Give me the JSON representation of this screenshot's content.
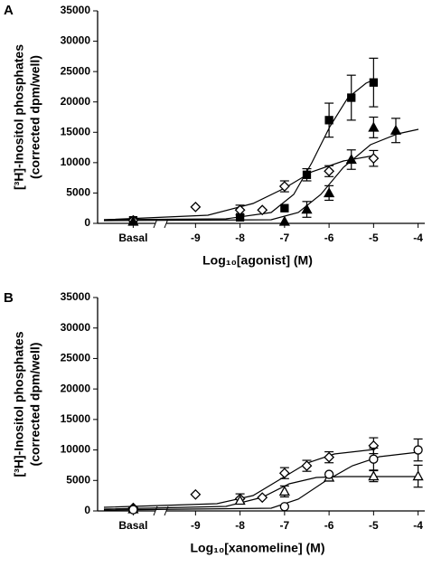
{
  "chart_data": [
    {
      "type": "scatter",
      "panel": "A",
      "ylabel": [
        "[³H]-Inositol phosphates",
        "(corrected dpm/well)"
      ],
      "xlabel": "Log₁₀[agonist] (M)",
      "xlim": [
        -11.2,
        -3.85
      ],
      "ylim": [
        0,
        35000
      ],
      "xticks": [
        {
          "value": -10.4,
          "label": "Basal"
        },
        -9,
        -8,
        -7,
        -6,
        -5,
        -4
      ],
      "yticks": [
        0,
        5000,
        10000,
        15000,
        20000,
        25000,
        30000,
        35000
      ],
      "series": [
        {
          "marker": "square",
          "filled": true,
          "color": "#000000",
          "x": [
            -10.4,
            -8,
            -7,
            -6.5,
            -6,
            -5.5,
            -5
          ],
          "values": [
            500,
            1000,
            2500,
            8000,
            17000,
            20700,
            23200
          ],
          "errors": [
            null,
            null,
            null,
            1000,
            2800,
            3700,
            4000
          ]
        },
        {
          "marker": "diamond",
          "filled": false,
          "color": "#000000",
          "x": [
            -10.4,
            -9,
            -8,
            -7.5,
            -7,
            -6,
            -5
          ],
          "values": [
            500,
            2700,
            2200,
            2200,
            6100,
            8600,
            10700
          ],
          "errors": [
            null,
            null,
            800,
            null,
            900,
            900,
            1300
          ]
        },
        {
          "marker": "triangle",
          "filled": true,
          "color": "#000000",
          "x": [
            -10.4,
            -7,
            -6.5,
            -6,
            -5.5,
            -5,
            -4.5
          ],
          "values": [
            300,
            300,
            2300,
            5000,
            10500,
            15800,
            15300
          ],
          "errors": [
            null,
            null,
            1300,
            1200,
            1600,
            1700,
            2000
          ]
        }
      ]
    },
    {
      "type": "scatter",
      "panel": "B",
      "ylabel": [
        "[³H]-Inositol phosphates",
        "(corrected dpm/well)"
      ],
      "xlabel": "Log₁₀[xanomeline] (M)",
      "xlim": [
        -11.2,
        -3.85
      ],
      "ylim": [
        0,
        35000
      ],
      "xticks": [
        {
          "value": -10.4,
          "label": "Basal"
        },
        -9,
        -8,
        -7,
        -6,
        -5,
        -4
      ],
      "yticks": [
        0,
        5000,
        10000,
        15000,
        20000,
        25000,
        30000,
        35000
      ],
      "series": [
        {
          "marker": "diamond",
          "filled": false,
          "color": "#000000",
          "x": [
            -10.4,
            -9,
            -8,
            -7.5,
            -7,
            -6.5,
            -6,
            -5
          ],
          "values": [
            500,
            2700,
            2000,
            2200,
            6200,
            7400,
            8800,
            10700
          ],
          "errors": [
            null,
            null,
            800,
            null,
            900,
            900,
            900,
            1300
          ]
        },
        {
          "marker": "triangle",
          "filled": false,
          "color": "#000000",
          "x": [
            -10.4,
            -8,
            -7,
            -6,
            -5,
            -4
          ],
          "values": [
            300,
            1700,
            3200,
            5500,
            5700,
            5700
          ],
          "errors": [
            null,
            null,
            900,
            null,
            900,
            1800
          ]
        },
        {
          "marker": "circle",
          "filled": false,
          "color": "#000000",
          "x": [
            -10.4,
            -7,
            -6,
            -5,
            -4
          ],
          "values": [
            200,
            700,
            6000,
            8500,
            10000
          ],
          "errors": [
            null,
            null,
            null,
            1800,
            1800
          ]
        }
      ]
    }
  ]
}
